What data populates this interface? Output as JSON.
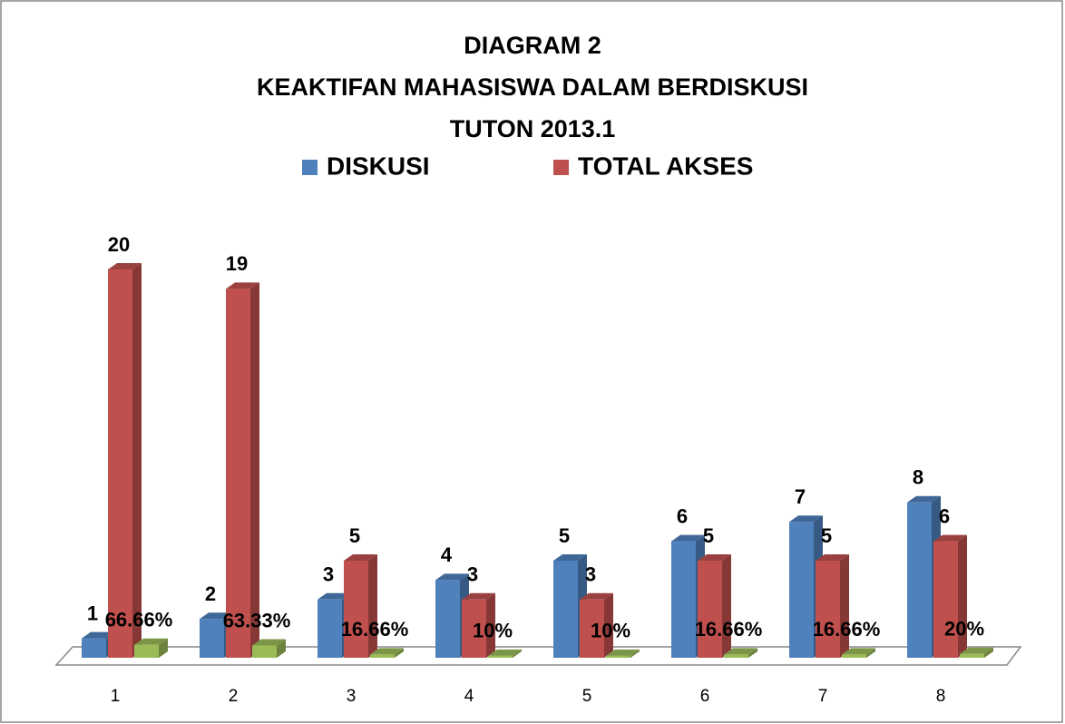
{
  "chart_data": {
    "type": "bar3d",
    "title": [
      "DIAGRAM  2",
      "KEAKTIFAN  MAHASISWA DALAM BERDISKUSI",
      "TUTON 2013.1"
    ],
    "categories": [
      "1",
      "2",
      "3",
      "4",
      "5",
      "6",
      "7",
      "8"
    ],
    "series": [
      {
        "name": "DISKUSI",
        "color": "#4f81bd",
        "values": [
          1,
          2,
          3,
          4,
          5,
          6,
          7,
          8
        ]
      },
      {
        "name": "TOTAL AKSES",
        "color": "#c0504d",
        "values": [
          20,
          19,
          5,
          3,
          3,
          5,
          5,
          6
        ]
      },
      {
        "color": "#9bbb59",
        "values": [
          0.6666,
          0.6333,
          0.1666,
          0.1,
          0.1,
          0.1666,
          0.1666,
          0.2
        ],
        "value_labels": [
          "66.66%",
          "63.33%",
          "16.66%",
          "10%",
          "10%",
          "16.66%",
          "16.66%",
          "20%"
        ]
      }
    ],
    "ylim": [
      0,
      20
    ],
    "legend": "top"
  }
}
